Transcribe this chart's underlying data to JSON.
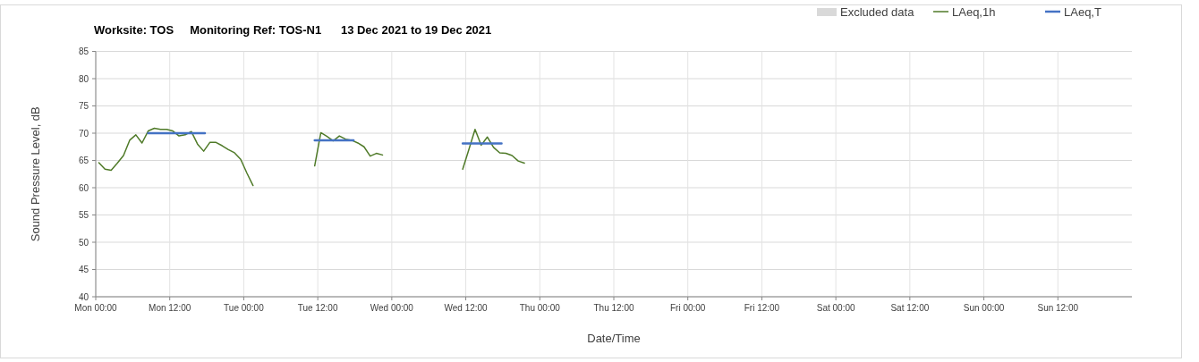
{
  "chart_data": {
    "type": "line",
    "title": "Worksite: TOS     Monitoring Ref: TOS-N1      13 Dec 2021 to 19 Dec 2021",
    "xlabel": "Date/Time",
    "ylabel": "Sound Pressure Level, dB",
    "xlim": [
      "2021-12-13T00:00",
      "2021-12-20T00:00"
    ],
    "xticks": [
      {
        "value": "2021-12-13T00:00",
        "label": "Mon 00:00"
      },
      {
        "value": "2021-12-13T12:00",
        "label": "Mon 12:00"
      },
      {
        "value": "2021-12-14T00:00",
        "label": "Tue 00:00"
      },
      {
        "value": "2021-12-14T12:00",
        "label": "Tue 12:00"
      },
      {
        "value": "2021-12-15T00:00",
        "label": "Wed 00:00"
      },
      {
        "value": "2021-12-15T12:00",
        "label": "Wed 12:00"
      },
      {
        "value": "2021-12-16T00:00",
        "label": "Thu 00:00"
      },
      {
        "value": "2021-12-16T12:00",
        "label": "Thu 12:00"
      },
      {
        "value": "2021-12-17T00:00",
        "label": "Fri 00:00"
      },
      {
        "value": "2021-12-17T12:00",
        "label": "Fri 12:00"
      },
      {
        "value": "2021-12-18T00:00",
        "label": "Sat 00:00"
      },
      {
        "value": "2021-12-18T12:00",
        "label": "Sat 12:00"
      },
      {
        "value": "2021-12-19T00:00",
        "label": "Sun 00:00"
      },
      {
        "value": "2021-12-19T12:00",
        "label": "Sun 12:00"
      }
    ],
    "ylim": [
      40,
      85
    ],
    "yticks": [
      40,
      45,
      50,
      55,
      60,
      65,
      70,
      75,
      80,
      85
    ],
    "grid": true,
    "legend": "top right",
    "series": [
      {
        "name": "Excluded data",
        "type": "area",
        "color": "#d9d9d9"
      },
      {
        "name": "LAeq,1h",
        "color": "#4f7a28",
        "x": [
          "2021-12-13T00:30",
          "2021-12-13T01:30",
          "2021-12-13T02:30",
          "2021-12-13T03:30",
          "2021-12-13T04:30",
          "2021-12-13T05:30",
          "2021-12-13T06:30",
          "2021-12-13T07:30",
          "2021-12-13T08:30",
          "2021-12-13T09:30",
          "2021-12-13T10:30",
          "2021-12-13T11:30",
          "2021-12-13T12:30",
          "2021-12-13T13:30",
          "2021-12-13T14:30",
          "2021-12-13T15:30",
          "2021-12-13T16:30",
          "2021-12-13T17:30",
          "2021-12-13T18:30",
          "2021-12-13T19:30",
          "2021-12-13T20:30",
          "2021-12-13T21:30",
          "2021-12-13T22:30",
          "2021-12-13T23:30",
          "2021-12-14T00:30",
          "2021-12-14T01:30",
          "2021-12-14T06:00",
          "2021-12-14T11:30",
          "2021-12-14T12:30",
          "2021-12-14T13:30",
          "2021-12-14T14:30",
          "2021-12-14T15:30",
          "2021-12-14T16:30",
          "2021-12-14T17:30",
          "2021-12-14T18:30",
          "2021-12-14T19:30",
          "2021-12-14T20:30",
          "2021-12-14T21:30",
          "2021-12-14T22:30",
          "2021-12-15T05:00",
          "2021-12-15T11:30",
          "2021-12-15T12:30",
          "2021-12-15T13:30",
          "2021-12-15T14:30",
          "2021-12-15T15:30",
          "2021-12-15T16:30",
          "2021-12-15T17:30",
          "2021-12-15T18:30",
          "2021-12-15T19:30",
          "2021-12-15T20:30",
          "2021-12-15T21:30"
        ],
        "values": [
          64.6,
          63.4,
          63.2,
          64.5,
          65.9,
          68.7,
          69.7,
          68.2,
          70.4,
          70.9,
          70.7,
          70.7,
          70.4,
          69.5,
          69.7,
          70.3,
          68.0,
          66.7,
          68.3,
          68.3,
          67.7,
          67.0,
          66.4,
          65.2,
          62.7,
          60.4,
          null,
          64.0,
          70.1,
          69.4,
          68.6,
          69.5,
          68.9,
          68.7,
          68.2,
          67.5,
          65.8,
          66.3,
          66.0,
          null,
          63.4,
          67.0,
          70.7,
          67.8,
          69.3,
          67.4,
          66.4,
          66.3,
          65.9,
          64.9,
          64.5
        ]
      },
      {
        "name": "LAeq,T",
        "color": "#4472c4",
        "x": [
          "2021-12-13T08:30",
          "2021-12-13T17:42",
          "2021-12-14T02:00",
          "2021-12-14T11:30",
          "2021-12-14T17:48",
          "2021-12-15T02:00",
          "2021-12-15T11:30",
          "2021-12-15T17:48"
        ],
        "values": [
          70.0,
          70.0,
          null,
          68.7,
          68.7,
          null,
          68.1,
          68.1
        ]
      }
    ]
  }
}
